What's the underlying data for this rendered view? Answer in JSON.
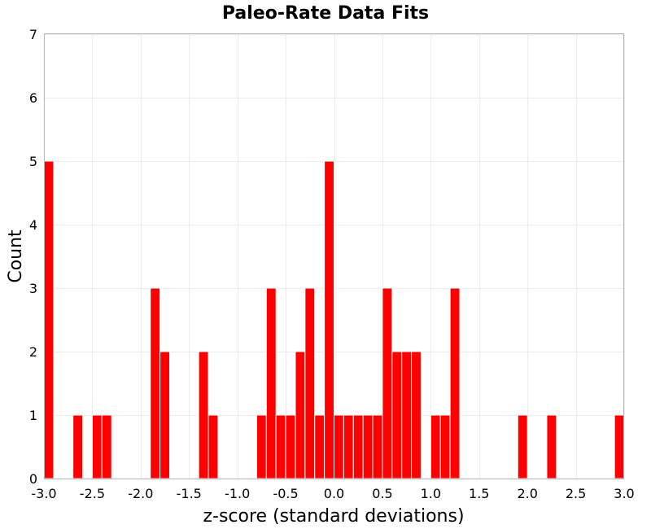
{
  "chart_data": {
    "type": "bar",
    "title": "Paleo-Rate Data Fits",
    "xlabel": "z-score (standard deviations)",
    "ylabel": "Count",
    "xlim": [
      -3.0,
      3.0
    ],
    "ylim": [
      0,
      7
    ],
    "bin_width": 0.1,
    "grid": true,
    "color": "#ff0000",
    "x_ticks": [
      "-3.0",
      "-2.5",
      "-2.0",
      "-1.5",
      "-1.0",
      "-0.5",
      "0.0",
      "0.5",
      "1.0",
      "1.5",
      "2.0",
      "2.5",
      "3.0"
    ],
    "y_ticks": [
      "0",
      "1",
      "2",
      "3",
      "4",
      "5",
      "6",
      "7"
    ],
    "bins": [
      {
        "start": -3.0,
        "count": 5
      },
      {
        "start": -2.7,
        "count": 1
      },
      {
        "start": -2.5,
        "count": 1
      },
      {
        "start": -2.4,
        "count": 1
      },
      {
        "start": -1.9,
        "count": 3
      },
      {
        "start": -1.8,
        "count": 2
      },
      {
        "start": -1.4,
        "count": 2
      },
      {
        "start": -1.3,
        "count": 1
      },
      {
        "start": -0.8,
        "count": 1
      },
      {
        "start": -0.7,
        "count": 3
      },
      {
        "start": -0.6,
        "count": 1
      },
      {
        "start": -0.5,
        "count": 1
      },
      {
        "start": -0.4,
        "count": 2
      },
      {
        "start": -0.3,
        "count": 3
      },
      {
        "start": -0.2,
        "count": 1
      },
      {
        "start": -0.1,
        "count": 5
      },
      {
        "start": 0.0,
        "count": 1
      },
      {
        "start": 0.1,
        "count": 1
      },
      {
        "start": 0.2,
        "count": 1
      },
      {
        "start": 0.3,
        "count": 1
      },
      {
        "start": 0.4,
        "count": 1
      },
      {
        "start": 0.5,
        "count": 3
      },
      {
        "start": 0.6,
        "count": 2
      },
      {
        "start": 0.7,
        "count": 2
      },
      {
        "start": 0.8,
        "count": 2
      },
      {
        "start": 1.0,
        "count": 1
      },
      {
        "start": 1.1,
        "count": 1
      },
      {
        "start": 1.2,
        "count": 3
      },
      {
        "start": 1.9,
        "count": 1
      },
      {
        "start": 2.2,
        "count": 1
      },
      {
        "start": 2.9,
        "count": 1
      }
    ]
  }
}
